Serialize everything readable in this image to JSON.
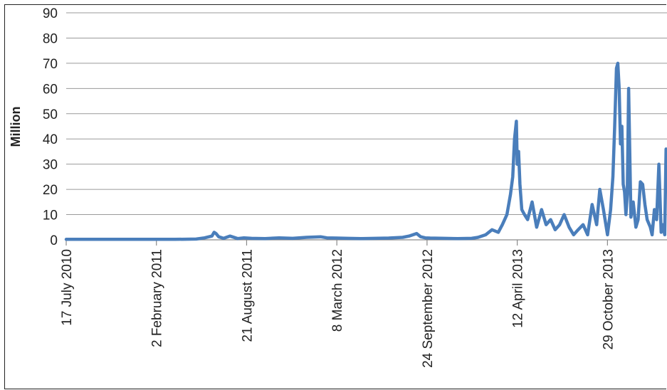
{
  "chart_data": {
    "type": "line",
    "title": "",
    "xlabel": "",
    "ylabel": "Million",
    "ylim": [
      0,
      90
    ],
    "y_ticks": [
      0,
      10,
      20,
      30,
      40,
      50,
      60,
      70,
      80,
      90
    ],
    "x_range": [
      "2010-07-17",
      "2014-03-10"
    ],
    "x_ticks": [
      {
        "date": "2010-07-17",
        "label": "17 July 2010"
      },
      {
        "date": "2011-02-02",
        "label": "2 February 2011"
      },
      {
        "date": "2011-08-21",
        "label": "21 August 2011"
      },
      {
        "date": "2012-03-08",
        "label": "8 March 2012"
      },
      {
        "date": "2012-09-24",
        "label": "24 September 2012"
      },
      {
        "date": "2013-04-12",
        "label": "12 April 2013"
      },
      {
        "date": "2013-10-29",
        "label": "29 October 2013"
      }
    ],
    "grid": "horizontal",
    "legend": "none",
    "series_color": "#4a7ebb",
    "series": [
      {
        "x": [
          "2010-07-17",
          "2010-10-01",
          "2011-01-01",
          "2011-03-15",
          "2011-05-01",
          "2011-05-20",
          "2011-06-05",
          "2011-06-10",
          "2011-06-14",
          "2011-06-20",
          "2011-07-01",
          "2011-07-15",
          "2011-08-01",
          "2011-08-15",
          "2011-09-01",
          "2011-10-01",
          "2011-11-01",
          "2011-12-01",
          "2012-01-01",
          "2012-02-01",
          "2012-02-15",
          "2012-03-08",
          "2012-04-01",
          "2012-05-01",
          "2012-06-01",
          "2012-07-01",
          "2012-08-01",
          "2012-08-15",
          "2012-09-01",
          "2012-09-10",
          "2012-09-20",
          "2012-10-01",
          "2012-11-01",
          "2012-12-01",
          "2013-01-01",
          "2013-01-15",
          "2013-02-01",
          "2013-02-15",
          "2013-03-01",
          "2013-03-10",
          "2013-03-20",
          "2013-03-28",
          "2013-04-02",
          "2013-04-06",
          "2013-04-10",
          "2013-04-12",
          "2013-04-15",
          "2013-04-18",
          "2013-04-22",
          "2013-04-28",
          "2013-05-05",
          "2013-05-15",
          "2013-05-25",
          "2013-06-05",
          "2013-06-15",
          "2013-06-25",
          "2013-07-05",
          "2013-07-15",
          "2013-07-25",
          "2013-08-05",
          "2013-08-15",
          "2013-08-25",
          "2013-09-05",
          "2013-09-15",
          "2013-09-25",
          "2013-10-05",
          "2013-10-12",
          "2013-10-20",
          "2013-10-29",
          "2013-11-05",
          "2013-11-10",
          "2013-11-14",
          "2013-11-18",
          "2013-11-21",
          "2013-11-24",
          "2013-11-27",
          "2013-11-30",
          "2013-12-03",
          "2013-12-06",
          "2013-12-09",
          "2013-12-12",
          "2013-12-15",
          "2013-12-20",
          "2013-12-25",
          "2013-12-31",
          "2014-01-05",
          "2014-01-10",
          "2014-01-15",
          "2014-01-20",
          "2014-01-25",
          "2014-02-01",
          "2014-02-05",
          "2014-02-10",
          "2014-02-15",
          "2014-02-20",
          "2014-02-25",
          "2014-03-01",
          "2014-03-05",
          "2014-03-08"
        ],
        "y": [
          0.2,
          0.2,
          0.2,
          0.2,
          0.3,
          0.8,
          1.5,
          3,
          2.5,
          1.2,
          0.6,
          1.5,
          0.5,
          0.8,
          0.6,
          0.5,
          0.8,
          0.6,
          1,
          1.2,
          0.8,
          0.7,
          0.6,
          0.5,
          0.6,
          0.7,
          1,
          1.5,
          2.5,
          1.2,
          0.8,
          0.7,
          0.6,
          0.5,
          0.6,
          1,
          2,
          4,
          3,
          6,
          10,
          18,
          25,
          40,
          47,
          30,
          35,
          22,
          12,
          10,
          8,
          15,
          5,
          12,
          6,
          8,
          4,
          6,
          10,
          5,
          2,
          4,
          6,
          2,
          14,
          6,
          20,
          12,
          2,
          12,
          25,
          45,
          68,
          70,
          60,
          38,
          45,
          22,
          19,
          10,
          18,
          60,
          9,
          15,
          5,
          8,
          23,
          22,
          14,
          8,
          5,
          2,
          12,
          8,
          30,
          3,
          6,
          2,
          36
        ]
      }
    ]
  }
}
